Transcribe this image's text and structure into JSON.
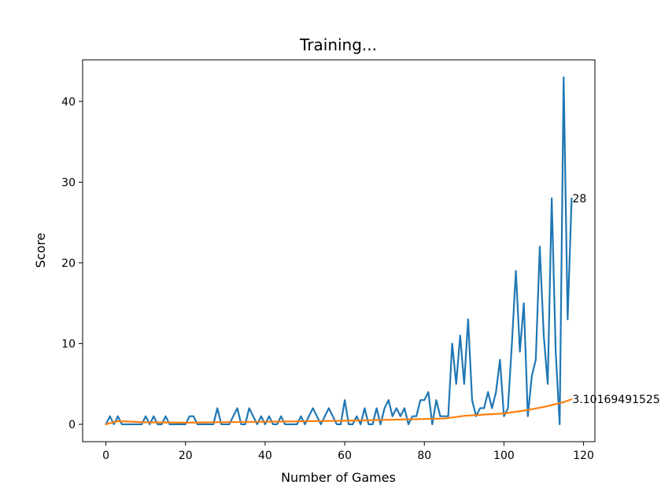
{
  "chart_data": {
    "type": "line",
    "title": "Training...",
    "xlabel": "Number of Games",
    "ylabel": "Score",
    "xlim": [
      -5.85,
      122.85
    ],
    "ylim": [
      -2.15,
      45.15
    ],
    "xticks": [
      0,
      20,
      40,
      60,
      80,
      100,
      120
    ],
    "yticks": [
      0,
      10,
      20,
      30,
      40
    ],
    "grid": false,
    "legend": "none",
    "series": [
      {
        "color": "#1f77b4",
        "x": [
          0,
          1,
          2,
          3,
          4,
          5,
          6,
          7,
          8,
          9,
          10,
          11,
          12,
          13,
          14,
          15,
          16,
          17,
          18,
          19,
          20,
          21,
          22,
          23,
          24,
          25,
          26,
          27,
          28,
          29,
          30,
          31,
          32,
          33,
          34,
          35,
          36,
          37,
          38,
          39,
          40,
          41,
          42,
          43,
          44,
          45,
          46,
          47,
          48,
          49,
          50,
          51,
          52,
          53,
          54,
          55,
          56,
          57,
          58,
          59,
          60,
          61,
          62,
          63,
          64,
          65,
          66,
          67,
          68,
          69,
          70,
          71,
          72,
          73,
          74,
          75,
          76,
          77,
          78,
          79,
          80,
          81,
          82,
          83,
          84,
          85,
          86,
          87,
          88,
          89,
          90,
          91,
          92,
          93,
          94,
          95,
          96,
          97,
          98,
          99,
          100,
          101,
          102,
          103,
          104,
          105,
          106,
          107,
          108,
          109,
          110,
          111,
          112,
          113,
          114,
          115,
          116,
          117
        ],
        "values": [
          0,
          1,
          0,
          1,
          0,
          0,
          0,
          0,
          0,
          0,
          1,
          0,
          1,
          0,
          0,
          1,
          0,
          0,
          0,
          0,
          0,
          1,
          1,
          0,
          0,
          0,
          0,
          0,
          2,
          0,
          0,
          0,
          1,
          2,
          0,
          0,
          2,
          1,
          0,
          1,
          0,
          1,
          0,
          0,
          1,
          0,
          0,
          0,
          0,
          1,
          0,
          1,
          2,
          1,
          0,
          1,
          2,
          1,
          0,
          0,
          3,
          0,
          0,
          1,
          0,
          2,
          0,
          0,
          2,
          0,
          2,
          3,
          1,
          2,
          1,
          2,
          0,
          1,
          1,
          3,
          3,
          4,
          0,
          3,
          1,
          1,
          1,
          10,
          5,
          11,
          5,
          13,
          3,
          1,
          2,
          2,
          4,
          2,
          4,
          8,
          1,
          2,
          10,
          19,
          9,
          15,
          1,
          6,
          8,
          22,
          11,
          5,
          28,
          9,
          0,
          43,
          13,
          28
        ]
      },
      {
        "color": "#ff7f0e",
        "x": [
          0,
          3,
          10,
          20,
          30,
          40,
          50,
          60,
          70,
          80,
          85,
          90,
          95,
          100,
          105,
          110,
          115,
          117
        ],
        "values": [
          0,
          0.4,
          0.25,
          0.2,
          0.27,
          0.32,
          0.38,
          0.45,
          0.55,
          0.66,
          0.72,
          1.05,
          1.2,
          1.35,
          1.7,
          2.15,
          2.75,
          3.10169491
        ]
      }
    ],
    "annotations": [
      {
        "text": "28",
        "x": 117,
        "y": 28
      },
      {
        "text": "3.10169491525",
        "x": 117,
        "y": 3.10169491
      }
    ]
  }
}
